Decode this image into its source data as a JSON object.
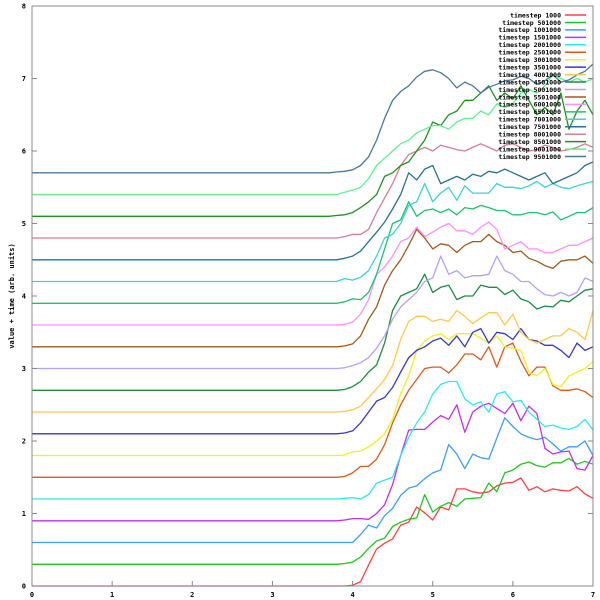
{
  "chart_data": {
    "type": "line",
    "title": "",
    "xlabel": "",
    "ylabel": "value + time (arb. units)",
    "xlim": [
      0,
      7
    ],
    "ylim": [
      0,
      8
    ],
    "xticks": [
      0,
      1,
      2,
      3,
      4,
      5,
      6,
      7
    ],
    "yticks": [
      0,
      1,
      2,
      3,
      4,
      5,
      6,
      7,
      8
    ],
    "grid": false,
    "legend_position": "upper right",
    "offset_per_series": 0.3,
    "x": [
      0.0,
      0.5,
      1.0,
      1.5,
      2.0,
      2.5,
      3.0,
      3.5,
      3.7,
      3.8,
      3.9,
      4.0,
      4.1,
      4.2,
      4.3,
      4.4,
      4.5,
      4.6,
      4.7,
      4.8,
      4.9,
      5.0,
      5.1,
      5.2,
      5.3,
      5.4,
      5.5,
      5.6,
      5.7,
      5.8,
      5.9,
      6.0,
      6.1,
      6.2,
      6.3,
      6.4,
      6.5,
      6.6,
      6.7,
      6.8,
      6.9,
      7.0
    ],
    "series": [
      {
        "name": "timestep 1000",
        "color": "#ff4040",
        "offset": 0.0
      },
      {
        "name": "timestep 501000",
        "color": "#22c322",
        "offset": 0.3
      },
      {
        "name": "timestep 1001000",
        "color": "#3f9cff",
        "offset": 0.6
      },
      {
        "name": "timestep 1501000",
        "color": "#c030f0",
        "offset": 0.9
      },
      {
        "name": "timestep 2001000",
        "color": "#30e8e8",
        "offset": 1.2
      },
      {
        "name": "timestep 2501000",
        "color": "#d85a20",
        "offset": 1.5
      },
      {
        "name": "timestep 3001000",
        "color": "#f0f020",
        "offset": 1.8
      },
      {
        "name": "timestep 3501000",
        "color": "#3838c8",
        "offset": 2.1
      },
      {
        "name": "timestep 4001000",
        "color": "#ffc850",
        "offset": 2.4
      },
      {
        "name": "timestep 4501000",
        "color": "#208a40",
        "offset": 2.7
      },
      {
        "name": "timestep 5001000",
        "color": "#b4a0ff",
        "offset": 3.0
      },
      {
        "name": "timestep 5501000",
        "color": "#a05a20",
        "offset": 3.3
      },
      {
        "name": "timestep 6001000",
        "color": "#ff90ff",
        "offset": 3.6
      },
      {
        "name": "timestep 6501000",
        "color": "#20c070",
        "offset": 3.9
      },
      {
        "name": "timestep 7001000",
        "color": "#40d0d0",
        "offset": 4.2
      },
      {
        "name": "timestep 7501000",
        "color": "#2a7090",
        "offset": 4.5
      },
      {
        "name": "timestep 8001000",
        "color": "#d08090",
        "offset": 4.8
      },
      {
        "name": "timestep 8501000",
        "color": "#209020",
        "offset": 5.1
      },
      {
        "name": "timestep 9001000",
        "color": "#60f090",
        "offset": 5.4
      },
      {
        "name": "timestep 9501000",
        "color": "#4a7898",
        "offset": 5.7
      }
    ],
    "responses": [
      [
        0,
        0,
        0,
        0,
        0,
        0,
        0,
        0,
        0,
        0,
        0,
        0.01,
        0.06,
        0.29,
        0.51,
        0.59,
        0.65,
        0.84,
        0.88,
        1.09,
        1.01,
        0.91,
        1.09,
        1.05,
        1.34,
        1.34,
        1.3,
        1.28,
        1.3,
        1.38,
        1.42,
        1.43,
        1.49,
        1.32,
        1.37,
        1.3,
        1.34,
        1.32,
        1.31,
        1.37,
        1.27,
        1.21
      ],
      [
        0,
        0,
        0,
        0,
        0,
        0,
        0,
        0,
        0,
        0,
        0.01,
        0.03,
        0.1,
        0.22,
        0.32,
        0.36,
        0.52,
        0.58,
        0.62,
        0.64,
        0.96,
        0.72,
        0.8,
        0.85,
        0.8,
        0.9,
        0.91,
        0.92,
        1.12,
        1.0,
        1.26,
        1.3,
        1.38,
        1.41,
        1.36,
        1.34,
        1.4,
        1.4,
        1.46,
        1.38,
        1.42,
        1.38
      ],
      [
        0,
        0,
        0,
        0,
        0,
        0,
        0,
        0,
        0,
        0,
        0,
        0,
        0.11,
        0.24,
        0.2,
        0.37,
        0.47,
        0.65,
        0.75,
        0.78,
        0.88,
        0.96,
        1.0,
        1.35,
        1.22,
        1.02,
        1.22,
        1.17,
        1.15,
        1.44,
        1.72,
        1.6,
        1.5,
        1.45,
        1.42,
        1.45,
        1.36,
        1.26,
        1.32,
        1.32,
        1.4,
        1.2
      ],
      [
        0,
        0,
        0,
        0,
        0,
        0,
        0,
        0,
        0,
        0,
        0.01,
        0.03,
        0.03,
        0.02,
        0.1,
        0.22,
        0.5,
        0.9,
        1.25,
        1.26,
        1.26,
        1.36,
        1.45,
        1.4,
        1.6,
        1.22,
        1.5,
        1.58,
        1.62,
        1.55,
        1.48,
        1.62,
        1.38,
        1.58,
        1.48,
        1.0,
        0.92,
        0.95,
        0.96,
        0.72,
        0.7,
        0.9
      ],
      [
        0,
        0,
        0,
        0,
        0,
        0,
        0,
        0,
        0,
        0,
        0.01,
        0.02,
        0.0,
        0.06,
        0.22,
        0.26,
        0.3,
        0.6,
        0.85,
        1.05,
        1.2,
        1.45,
        1.58,
        1.62,
        1.62,
        1.38,
        1.3,
        1.34,
        1.2,
        1.45,
        1.48,
        1.34,
        1.36,
        1.2,
        1.1,
        1.0,
        1.02,
        0.98,
        0.96,
        1.0,
        1.1,
        0.95
      ],
      [
        0,
        0,
        0,
        0,
        0,
        0,
        0,
        0,
        0,
        0,
        0.01,
        0.06,
        0.15,
        0.15,
        0.25,
        0.45,
        0.75,
        1.0,
        1.2,
        1.35,
        1.5,
        1.52,
        1.52,
        1.44,
        1.55,
        1.7,
        1.7,
        1.62,
        1.8,
        1.52,
        1.8,
        1.85,
        1.6,
        1.4,
        1.52,
        1.52,
        1.26,
        1.2,
        1.2,
        1.22,
        1.18,
        1.1
      ],
      [
        0,
        0,
        0,
        0,
        0,
        0,
        0,
        0,
        0,
        0,
        0.01,
        0.05,
        0.06,
        0.12,
        0.2,
        0.3,
        0.5,
        0.85,
        1.1,
        1.45,
        1.58,
        1.65,
        1.68,
        1.6,
        1.68,
        1.68,
        1.68,
        1.62,
        1.55,
        1.65,
        1.5,
        1.48,
        1.45,
        1.15,
        1.1,
        1.2,
        0.98,
        0.95,
        1.1,
        1.15,
        1.2,
        1.3
      ],
      [
        0,
        0,
        0,
        0,
        0,
        0,
        0,
        0,
        0,
        0,
        0.01,
        0.04,
        0.15,
        0.3,
        0.45,
        0.5,
        0.64,
        0.85,
        1.05,
        1.15,
        1.2,
        1.28,
        1.32,
        1.22,
        1.35,
        1.2,
        1.4,
        1.45,
        1.25,
        1.4,
        1.38,
        1.3,
        1.45,
        1.3,
        1.28,
        1.22,
        1.22,
        1.15,
        1.05,
        1.25,
        1.15,
        1.2
      ],
      [
        0,
        0,
        0,
        0,
        0,
        0,
        0,
        0,
        0,
        0,
        0.01,
        0.03,
        0.08,
        0.2,
        0.32,
        0.45,
        0.64,
        1.0,
        1.25,
        1.32,
        1.32,
        1.25,
        1.28,
        1.25,
        1.4,
        1.32,
        1.22,
        1.3,
        1.37,
        1.37,
        1.2,
        1.35,
        1.1,
        1.0,
        0.95,
        1.0,
        1.05,
        1.05,
        1.15,
        1.1,
        1.0,
        1.4
      ],
      [
        0,
        0,
        0,
        0,
        0,
        0,
        0,
        0,
        0,
        0,
        0.01,
        0.05,
        0.12,
        0.25,
        0.35,
        0.65,
        1.1,
        1.3,
        1.35,
        1.4,
        1.6,
        1.35,
        1.42,
        1.45,
        1.25,
        1.3,
        1.3,
        1.45,
        1.42,
        1.42,
        1.32,
        1.38,
        1.26,
        1.22,
        1.12,
        1.16,
        1.15,
        1.24,
        1.22,
        1.3,
        1.38,
        1.4
      ],
      [
        0,
        0,
        0,
        0,
        0,
        0,
        0,
        0,
        0,
        0,
        0.01,
        0.04,
        0.08,
        0.15,
        0.28,
        0.45,
        0.68,
        0.85,
        0.95,
        1.05,
        1.2,
        1.25,
        1.55,
        1.3,
        1.35,
        1.25,
        1.28,
        1.28,
        1.3,
        1.55,
        1.35,
        1.3,
        1.2,
        1.2,
        1.1,
        1.02,
        1.0,
        1.05,
        1.0,
        1.05,
        1.25,
        1.2
      ],
      [
        0,
        0,
        0,
        0,
        0,
        0,
        0,
        0,
        0,
        0,
        0.01,
        0.04,
        0.15,
        0.38,
        0.55,
        0.85,
        1.05,
        1.2,
        1.4,
        1.62,
        1.5,
        1.35,
        1.42,
        1.4,
        1.3,
        1.4,
        1.45,
        1.45,
        1.55,
        1.45,
        1.4,
        1.3,
        1.32,
        1.22,
        1.18,
        1.12,
        1.08,
        1.18,
        1.2,
        1.2,
        1.25,
        1.15
      ],
      [
        0,
        0,
        0,
        0,
        0,
        0,
        0,
        0,
        0,
        0,
        0.01,
        0.04,
        0.15,
        0.35,
        0.7,
        0.8,
        0.95,
        1.15,
        1.2,
        1.35,
        1.22,
        1.28,
        1.35,
        1.4,
        1.3,
        1.3,
        1.25,
        1.35,
        1.42,
        1.32,
        1.05,
        1.1,
        1.15,
        1.05,
        1.05,
        1.0,
        1.0,
        1.05,
        1.1,
        1.1,
        1.15,
        1.2
      ],
      [
        0,
        0,
        0,
        0,
        0,
        0,
        0,
        0,
        0,
        0,
        0.02,
        0.06,
        0.05,
        0.15,
        0.4,
        0.75,
        1.1,
        1.15,
        1.4,
        1.2,
        1.28,
        1.3,
        1.25,
        1.3,
        1.22,
        1.32,
        1.3,
        1.35,
        1.32,
        1.28,
        1.28,
        1.22,
        1.22,
        1.25,
        1.25,
        1.22,
        1.26,
        1.15,
        1.2,
        1.25,
        1.25,
        1.32
      ],
      [
        0,
        0,
        0,
        0,
        0,
        0,
        0,
        0,
        0,
        0,
        0.04,
        0.02,
        0.06,
        0.15,
        0.35,
        0.6,
        0.65,
        0.8,
        1.05,
        1.1,
        1.35,
        1.1,
        1.22,
        1.3,
        1.12,
        1.32,
        1.22,
        1.22,
        1.22,
        1.35,
        1.3,
        1.3,
        1.28,
        1.32,
        1.38,
        1.3,
        1.35,
        1.3,
        1.28,
        1.32,
        1.35,
        1.38
      ],
      [
        0,
        0,
        0,
        0,
        0,
        0,
        0,
        0,
        0,
        0,
        0.02,
        0.05,
        0.12,
        0.25,
        0.38,
        0.52,
        0.7,
        0.9,
        1.2,
        1.1,
        1.25,
        1.3,
        1.05,
        1.1,
        1.15,
        1.1,
        1.18,
        1.15,
        1.22,
        1.2,
        1.25,
        1.2,
        1.15,
        1.1,
        1.15,
        1.2,
        1.05,
        1.1,
        1.15,
        1.2,
        1.3,
        1.35
      ],
      [
        0,
        0,
        0,
        0,
        0,
        0,
        0,
        0,
        0,
        0,
        0.02,
        0.05,
        0.05,
        0.12,
        0.35,
        0.55,
        0.75,
        1.0,
        1.15,
        1.2,
        1.25,
        1.2,
        1.28,
        1.25,
        1.22,
        1.2,
        1.25,
        1.3,
        1.25,
        1.2,
        1.28,
        1.3,
        1.25,
        1.2,
        1.22,
        1.28,
        1.25,
        1.2,
        1.22,
        1.25,
        1.3,
        1.25
      ],
      [
        0,
        0,
        0,
        0,
        0,
        0,
        0,
        0,
        0,
        0.01,
        0.02,
        0.05,
        0.12,
        0.2,
        0.3,
        0.55,
        0.6,
        0.7,
        0.75,
        0.9,
        1.05,
        1.3,
        1.25,
        1.4,
        1.45,
        1.6,
        1.6,
        1.7,
        1.8,
        1.6,
        1.7,
        1.62,
        1.8,
        1.6,
        1.4,
        1.5,
        1.4,
        1.7,
        1.2,
        1.45,
        1.6,
        1.4
      ],
      [
        0,
        0,
        0,
        0,
        0,
        0,
        0,
        0,
        0,
        0,
        0.03,
        0.06,
        0.1,
        0.22,
        0.4,
        0.5,
        0.6,
        0.7,
        0.75,
        0.85,
        0.9,
        0.95,
        0.95,
        0.9,
        1.0,
        1.05,
        1.05,
        1.15,
        1.1,
        1.25,
        1.2,
        1.25,
        1.4,
        1.45,
        1.4,
        1.5,
        1.65,
        1.6,
        1.55,
        1.6,
        1.55,
        1.6
      ],
      [
        0,
        0,
        0,
        0,
        0,
        0,
        0,
        0,
        0,
        0.01,
        0.02,
        0.04,
        0.1,
        0.22,
        0.45,
        0.75,
        1.0,
        1.12,
        1.2,
        1.32,
        1.4,
        1.42,
        1.38,
        1.3,
        1.17,
        1.25,
        1.2,
        1.1,
        1.18,
        1.22,
        1.27,
        1.28,
        1.33,
        1.3,
        1.22,
        1.27,
        1.35,
        1.25,
        1.28,
        1.35,
        1.4,
        1.5
      ]
    ]
  }
}
